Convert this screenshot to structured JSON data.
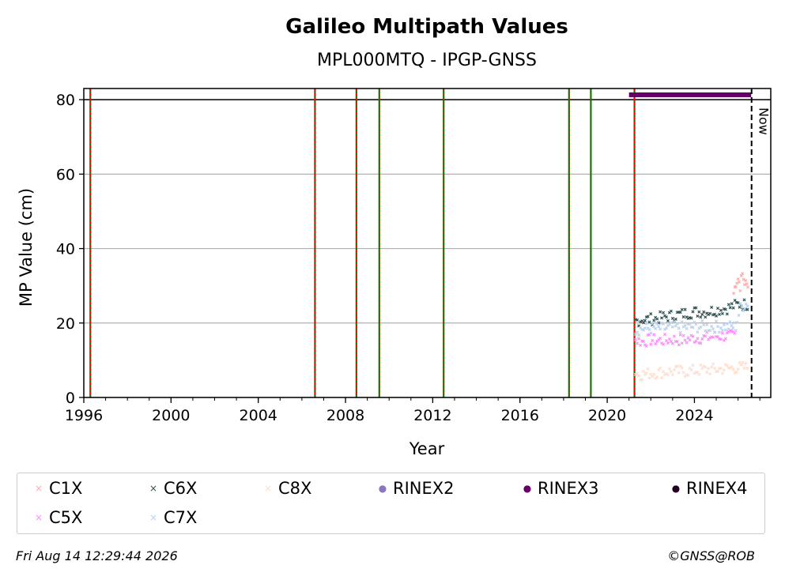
{
  "chart_data": {
    "type": "scatter",
    "title": "Galileo Multipath Values",
    "subtitle": "MPL000MTQ - IPGP-GNSS",
    "xlabel": "Year",
    "ylabel": "MP Value (cm)",
    "xlim": [
      1996.0,
      2027.5
    ],
    "ylim": [
      0,
      83
    ],
    "x_ticks": [
      1996,
      2000,
      2004,
      2008,
      2012,
      2016,
      2020,
      2024
    ],
    "y_ticks": [
      0,
      20,
      40,
      60,
      80
    ],
    "grid": "horizontal",
    "legend_position": "bottom",
    "now_label": "Now",
    "now_x": 2026.62,
    "threshold_y": 80,
    "event_lines_x": [
      1996.3,
      2006.6,
      2008.5,
      2009.55,
      2012.5,
      2018.25,
      2019.25,
      2021.25
    ],
    "rinex3_bar": {
      "x_start": 2021.0,
      "x_end": 2026.6,
      "y": 81.3
    },
    "series": [
      {
        "name": "C1X",
        "color": "#ffaaaa",
        "marker": "x",
        "points": [
          [
            2025.8,
            28
          ],
          [
            2025.9,
            31
          ],
          [
            2026.0,
            32
          ],
          [
            2026.1,
            30
          ],
          [
            2026.2,
            33
          ],
          [
            2026.3,
            31
          ],
          [
            2026.4,
            30
          ],
          [
            2026.5,
            32
          ]
        ]
      },
      {
        "name": "C5X",
        "color": "#ff88ff",
        "marker": "x",
        "points": [
          [
            2021.3,
            15.5
          ],
          [
            2021.6,
            15
          ],
          [
            2022.0,
            15.5
          ],
          [
            2022.5,
            15.3
          ],
          [
            2023.0,
            15.6
          ],
          [
            2023.5,
            15.4
          ],
          [
            2024.0,
            16
          ],
          [
            2024.5,
            16
          ],
          [
            2025.0,
            16.5
          ],
          [
            2025.5,
            16.5
          ],
          [
            2025.9,
            16.5
          ]
        ]
      },
      {
        "name": "C6X",
        "color": "#2f4f4f",
        "marker": "x",
        "points": [
          [
            2021.3,
            20.5
          ],
          [
            2021.6,
            21
          ],
          [
            2022.0,
            21
          ],
          [
            2022.5,
            21.5
          ],
          [
            2023.0,
            22
          ],
          [
            2023.5,
            22.5
          ],
          [
            2024.0,
            23
          ],
          [
            2024.5,
            23
          ],
          [
            2025.0,
            23.5
          ],
          [
            2025.5,
            24
          ],
          [
            2026.0,
            25
          ],
          [
            2026.5,
            25
          ]
        ]
      },
      {
        "name": "C7X",
        "color": "#b8d0ee",
        "marker": "x",
        "points": [
          [
            2021.3,
            18
          ],
          [
            2021.6,
            18.5
          ],
          [
            2022.0,
            18.5
          ],
          [
            2022.5,
            18.5
          ],
          [
            2023.0,
            18.8
          ],
          [
            2023.5,
            18.8
          ],
          [
            2024.0,
            19
          ],
          [
            2024.5,
            19
          ],
          [
            2025.0,
            19
          ],
          [
            2025.5,
            19
          ],
          [
            2025.9,
            19
          ],
          [
            2026.1,
            24
          ],
          [
            2026.3,
            25
          ],
          [
            2026.5,
            25.5
          ]
        ]
      },
      {
        "name": "C8X",
        "color": "#ffddcc",
        "marker": "x",
        "points": [
          [
            2021.3,
            6.5
          ],
          [
            2021.6,
            6.2
          ],
          [
            2022.0,
            6.5
          ],
          [
            2022.5,
            6.8
          ],
          [
            2023.0,
            7
          ],
          [
            2023.5,
            7
          ],
          [
            2024.0,
            7.2
          ],
          [
            2024.5,
            7.5
          ],
          [
            2025.0,
            7.5
          ],
          [
            2025.5,
            7.8
          ],
          [
            2026.0,
            8
          ],
          [
            2026.5,
            8
          ]
        ]
      },
      {
        "name": "RINEX2",
        "color": "#8877bb",
        "marker": "o",
        "points": []
      },
      {
        "name": "RINEX3",
        "color": "#660066",
        "marker": "o",
        "points": []
      },
      {
        "name": "RINEX4",
        "color": "#220022",
        "marker": "o",
        "points": []
      }
    ]
  },
  "legend": {
    "items": [
      {
        "label": "C1X",
        "marker": "×",
        "color": "#ffaaaa"
      },
      {
        "label": "C6X",
        "marker": "×",
        "color": "#2f4f4f"
      },
      {
        "label": "C8X",
        "marker": "×",
        "color": "#ffddcc"
      },
      {
        "label": "RINEX2",
        "marker": "●",
        "color": "#8877bb"
      },
      {
        "label": "RINEX3",
        "marker": "●",
        "color": "#660066"
      },
      {
        "label": "RINEX4",
        "marker": "●",
        "color": "#220022"
      },
      {
        "label": "C5X",
        "marker": "×",
        "color": "#ff88ff"
      },
      {
        "label": "C7X",
        "marker": "×",
        "color": "#b8d0ee"
      }
    ]
  },
  "footer": {
    "timestamp": "Fri Aug 14 12:29:44 2026",
    "credit": "©GNSS@ROB"
  }
}
